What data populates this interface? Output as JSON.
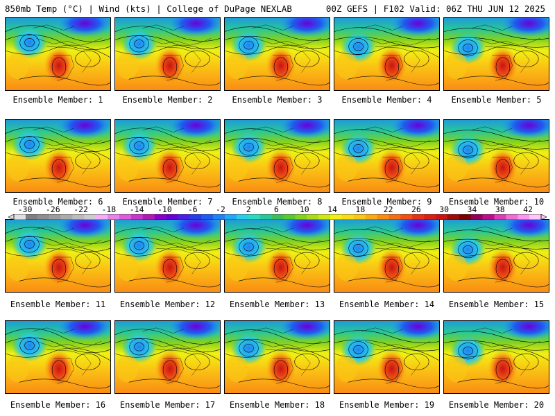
{
  "header": {
    "left": "850mb Temp (°C) | Wind (kts) | College of DuPage NEXLAB",
    "right": "00Z GEFS | F102 Valid: 06Z THU JUN 12 2025"
  },
  "members": [
    "Ensemble Member: 1",
    "Ensemble Member: 2",
    "Ensemble Member: 3",
    "Ensemble Member: 4",
    "Ensemble Member: 5",
    "Ensemble Member: 6",
    "Ensemble Member: 7",
    "Ensemble Member: 8",
    "Ensemble Member: 9",
    "Ensemble Member: 10",
    "Ensemble Member: 11",
    "Ensemble Member: 12",
    "Ensemble Member: 13",
    "Ensemble Member: 14",
    "Ensemble Member: 15",
    "Ensemble Member: 16",
    "Ensemble Member: 17",
    "Ensemble Member: 18",
    "Ensemble Member: 19",
    "Ensemble Member: 20"
  ],
  "colorbar": {
    "labels": [
      "-30",
      "-26",
      "-22",
      "-18",
      "-14",
      "-10",
      "-6",
      "-2",
      "2",
      "6",
      "10",
      "14",
      "18",
      "22",
      "26",
      "30",
      "34",
      "38",
      "42"
    ],
    "colors": [
      "#e0e0e0",
      "#7f7f7f",
      "#8e8e8e",
      "#9c9c9c",
      "#ababab",
      "#bcbcbc",
      "#cccccc",
      "#f2b0f2",
      "#e784e7",
      "#dc5cdc",
      "#cc33cc",
      "#b31ab3",
      "#8d00c8",
      "#6a00d8",
      "#4b1ee0",
      "#2a3ce8",
      "#1e5cf0",
      "#1e82f5",
      "#23a8f8",
      "#2ccbe8",
      "#2ad9c0",
      "#2ac896",
      "#3cbc5a",
      "#5ac832",
      "#82d21e",
      "#aadc14",
      "#d2e614",
      "#f0f014",
      "#fadc14",
      "#fac814",
      "#faaa14",
      "#fa8c14",
      "#f56e14",
      "#f05014",
      "#e63214",
      "#dc1e14",
      "#c81414",
      "#a00a0a",
      "#7d0000",
      "#96005a",
      "#be0a8c",
      "#dc3cb4",
      "#f06ed2",
      "#ff96ec",
      "#ffc8f8"
    ]
  }
}
